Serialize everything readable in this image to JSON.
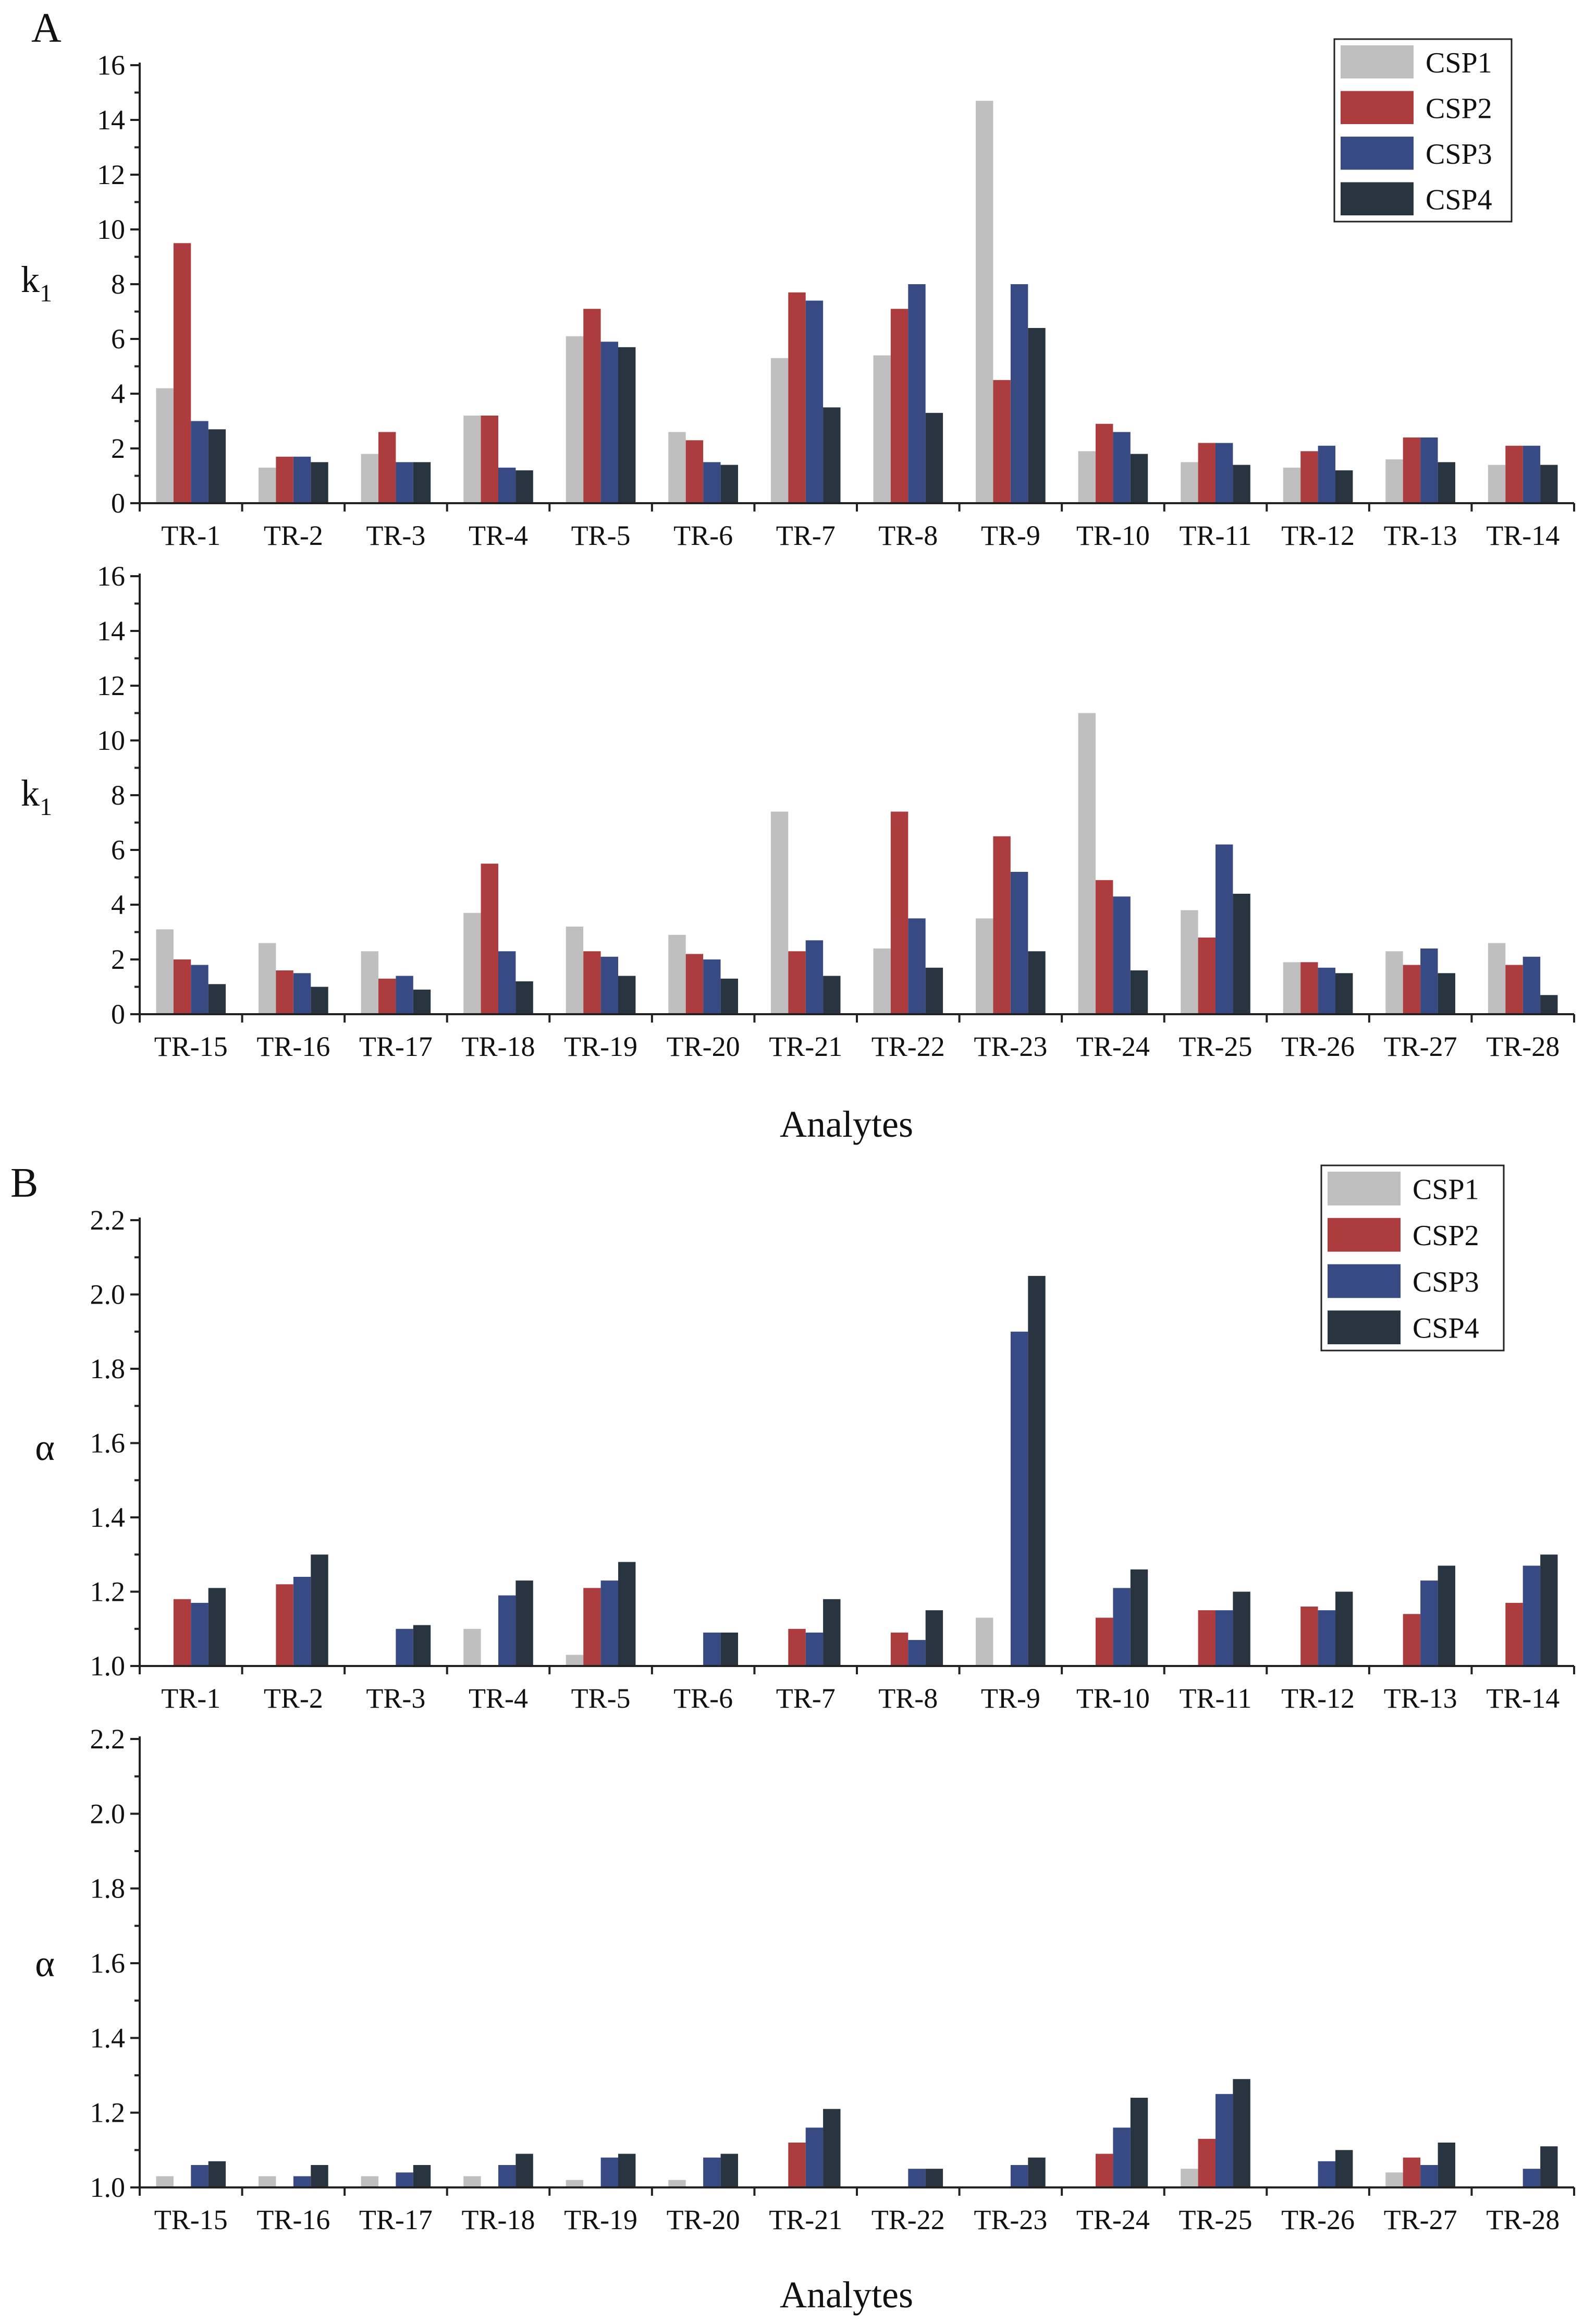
{
  "figure_labels": {
    "panel_a": "A",
    "panel_b": "B"
  },
  "chart_data": [
    {
      "type": "bar",
      "panel": "A (upper)",
      "ylabel": "k",
      "ylabel_sub": "1",
      "xlabel": "",
      "ylim": [
        0,
        16
      ],
      "yticks": [
        0,
        2,
        4,
        6,
        8,
        10,
        12,
        14,
        16
      ],
      "grid": false,
      "legend": "top-right",
      "colors": {
        "CSP1": "#bfbfbf",
        "CSP2": "#ad3c3f",
        "CSP3": "#384a83",
        "CSP4": "#28343f"
      },
      "categories": [
        "TR-1",
        "TR-2",
        "TR-3",
        "TR-4",
        "TR-5",
        "TR-6",
        "TR-7",
        "TR-8",
        "TR-9",
        "TR-10",
        "TR-11",
        "TR-12",
        "TR-13",
        "TR-14"
      ],
      "series": [
        {
          "name": "CSP1",
          "values": [
            4.2,
            1.3,
            1.8,
            3.2,
            6.1,
            2.6,
            5.3,
            5.4,
            14.7,
            1.9,
            1.5,
            1.3,
            1.6,
            1.4
          ]
        },
        {
          "name": "CSP2",
          "values": [
            9.5,
            1.7,
            2.6,
            3.2,
            7.1,
            2.3,
            7.7,
            7.1,
            4.5,
            2.9,
            2.2,
            1.9,
            2.4,
            2.1
          ]
        },
        {
          "name": "CSP3",
          "values": [
            3.0,
            1.7,
            1.5,
            1.3,
            5.9,
            1.5,
            7.4,
            8.0,
            8.0,
            2.6,
            2.2,
            2.1,
            2.4,
            2.1
          ]
        },
        {
          "name": "CSP4",
          "values": [
            2.7,
            1.5,
            1.5,
            1.2,
            5.7,
            1.4,
            3.5,
            3.3,
            6.4,
            1.8,
            1.4,
            1.2,
            1.5,
            1.4
          ]
        }
      ]
    },
    {
      "type": "bar",
      "panel": "A (lower)",
      "ylabel": "k",
      "ylabel_sub": "1",
      "xlabel": "Analytes",
      "ylim": [
        0,
        16
      ],
      "yticks": [
        0,
        2,
        4,
        6,
        8,
        10,
        12,
        14,
        16
      ],
      "grid": false,
      "legend": "none",
      "colors": {
        "CSP1": "#bfbfbf",
        "CSP2": "#ad3c3f",
        "CSP3": "#384a83",
        "CSP4": "#28343f"
      },
      "categories": [
        "TR-15",
        "TR-16",
        "TR-17",
        "TR-18",
        "TR-19",
        "TR-20",
        "TR-21",
        "TR-22",
        "TR-23",
        "TR-24",
        "TR-25",
        "TR-26",
        "TR-27",
        "TR-28"
      ],
      "series": [
        {
          "name": "CSP1",
          "values": [
            3.1,
            2.6,
            2.3,
            3.7,
            3.2,
            2.9,
            7.4,
            2.4,
            3.5,
            11.0,
            3.8,
            1.9,
            2.3,
            2.6
          ]
        },
        {
          "name": "CSP2",
          "values": [
            2.0,
            1.6,
            1.3,
            5.5,
            2.3,
            2.2,
            2.3,
            7.4,
            6.5,
            4.9,
            2.8,
            1.9,
            1.8,
            1.8
          ]
        },
        {
          "name": "CSP3",
          "values": [
            1.8,
            1.5,
            1.4,
            2.3,
            2.1,
            2.0,
            2.7,
            3.5,
            5.2,
            4.3,
            6.2,
            1.7,
            2.4,
            2.1
          ]
        },
        {
          "name": "CSP4",
          "values": [
            1.1,
            1.0,
            0.9,
            1.2,
            1.4,
            1.3,
            1.4,
            1.7,
            2.3,
            1.6,
            4.4,
            1.5,
            1.5,
            0.7
          ]
        }
      ]
    },
    {
      "type": "bar",
      "panel": "B (upper)",
      "ylabel": "α",
      "ylabel_sub": "",
      "xlabel": "",
      "ylim": [
        1.0,
        2.2
      ],
      "yticks": [
        1.0,
        1.2,
        1.4,
        1.6,
        1.8,
        2.0,
        2.2
      ],
      "grid": false,
      "legend": "top-right",
      "colors": {
        "CSP1": "#bfbfbf",
        "CSP2": "#ad3c3f",
        "CSP3": "#384a83",
        "CSP4": "#28343f"
      },
      "categories": [
        "TR-1",
        "TR-2",
        "TR-3",
        "TR-4",
        "TR-5",
        "TR-6",
        "TR-7",
        "TR-8",
        "TR-9",
        "TR-10",
        "TR-11",
        "TR-12",
        "TR-13",
        "TR-14"
      ],
      "series": [
        {
          "name": "CSP1",
          "values": [
            1.0,
            1.0,
            1.0,
            1.1,
            1.03,
            1.0,
            1.0,
            1.0,
            1.13,
            1.0,
            1.0,
            1.0,
            1.0,
            1.0
          ]
        },
        {
          "name": "CSP2",
          "values": [
            1.18,
            1.22,
            1.0,
            1.0,
            1.21,
            1.0,
            1.1,
            1.09,
            1.0,
            1.13,
            1.15,
            1.16,
            1.14,
            1.17
          ]
        },
        {
          "name": "CSP3",
          "values": [
            1.17,
            1.24,
            1.1,
            1.19,
            1.23,
            1.09,
            1.09,
            1.07,
            1.9,
            1.21,
            1.15,
            1.15,
            1.23,
            1.27
          ]
        },
        {
          "name": "CSP4",
          "values": [
            1.21,
            1.3,
            1.11,
            1.23,
            1.28,
            1.09,
            1.18,
            1.15,
            2.05,
            1.26,
            1.2,
            1.2,
            1.27,
            1.3
          ]
        }
      ]
    },
    {
      "type": "bar",
      "panel": "B (lower)",
      "ylabel": "α",
      "ylabel_sub": "",
      "xlabel": "Analytes",
      "ylim": [
        1.0,
        2.2
      ],
      "yticks": [
        1.0,
        1.2,
        1.4,
        1.6,
        1.8,
        2.0,
        2.2
      ],
      "grid": false,
      "legend": "none",
      "colors": {
        "CSP1": "#bfbfbf",
        "CSP2": "#ad3c3f",
        "CSP3": "#384a83",
        "CSP4": "#28343f"
      },
      "categories": [
        "TR-15",
        "TR-16",
        "TR-17",
        "TR-18",
        "TR-19",
        "TR-20",
        "TR-21",
        "TR-22",
        "TR-23",
        "TR-24",
        "TR-25",
        "TR-26",
        "TR-27",
        "TR-28"
      ],
      "series": [
        {
          "name": "CSP1",
          "values": [
            1.03,
            1.03,
            1.03,
            1.03,
            1.02,
            1.02,
            1.0,
            1.0,
            1.0,
            1.0,
            1.05,
            1.0,
            1.04,
            1.0
          ]
        },
        {
          "name": "CSP2",
          "values": [
            1.0,
            1.0,
            1.0,
            1.0,
            1.0,
            1.0,
            1.12,
            1.0,
            1.0,
            1.09,
            1.13,
            1.0,
            1.08,
            1.0
          ]
        },
        {
          "name": "CSP3",
          "values": [
            1.06,
            1.03,
            1.04,
            1.06,
            1.08,
            1.08,
            1.16,
            1.05,
            1.06,
            1.16,
            1.25,
            1.07,
            1.06,
            1.05
          ]
        },
        {
          "name": "CSP4",
          "values": [
            1.07,
            1.06,
            1.06,
            1.09,
            1.09,
            1.09,
            1.21,
            1.05,
            1.08,
            1.24,
            1.29,
            1.1,
            1.12,
            1.11
          ]
        }
      ]
    }
  ]
}
